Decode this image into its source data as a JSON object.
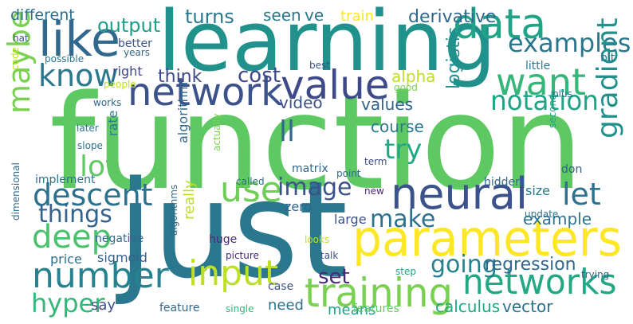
{
  "words": [
    {
      "text": "function",
      "color": "#5ec962"
    },
    {
      "text": "just",
      "color": "#2a788e"
    },
    {
      "text": "learning",
      "color": "#21918c"
    },
    {
      "text": "parameters",
      "color": "#fde725"
    },
    {
      "text": "neural",
      "color": "#3b528b"
    },
    {
      "text": "like",
      "color": "#31688e"
    },
    {
      "text": "network",
      "color": "#3b528b"
    },
    {
      "text": "value",
      "color": "#3e4989"
    },
    {
      "text": "data",
      "color": "#20a386"
    },
    {
      "text": "want",
      "color": "#35b779"
    },
    {
      "text": "training",
      "color": "#7ad151"
    },
    {
      "text": "number",
      "color": "#26828e"
    },
    {
      "text": "networks",
      "color": "#22a884"
    },
    {
      "text": "use",
      "color": "#6ece58"
    },
    {
      "text": "descent",
      "color": "#2c728e"
    },
    {
      "text": "deep",
      "color": "#4ac16d"
    },
    {
      "text": "input",
      "color": "#bddf26"
    },
    {
      "text": "know",
      "color": "#2a788e"
    },
    {
      "text": "maybe",
      "color": "#7ad151"
    },
    {
      "text": "examples",
      "color": "#2a788e"
    },
    {
      "text": "notation",
      "color": "#20a386"
    },
    {
      "text": "gradient",
      "color": "#21918c"
    },
    {
      "text": "let",
      "color": "#2c728e"
    },
    {
      "text": "lot",
      "color": "#5ec962"
    },
    {
      "text": "ll",
      "color": "#31688e"
    },
    {
      "text": "try",
      "color": "#22a884"
    },
    {
      "text": "things",
      "color": "#33638d"
    },
    {
      "text": "hyper",
      "color": "#35b779"
    },
    {
      "text": "going",
      "color": "#26828e"
    },
    {
      "text": "image",
      "color": "#3b528b"
    },
    {
      "text": "make",
      "color": "#2c728e"
    },
    {
      "text": "cost",
      "color": "#3e4989"
    },
    {
      "text": "output",
      "color": "#1f9e89"
    },
    {
      "text": "turns",
      "color": "#2a788e"
    },
    {
      "text": "derivative",
      "color": "#31688e"
    },
    {
      "text": "seen",
      "color": "#2a788e"
    },
    {
      "text": "ve",
      "color": "#2a788e"
    },
    {
      "text": "different",
      "color": "#2c728e"
    },
    {
      "text": "train",
      "color": "#fde725"
    },
    {
      "text": "think",
      "color": "#3e4989"
    },
    {
      "text": "video",
      "color": "#3b528b"
    },
    {
      "text": "values",
      "color": "#33638d"
    },
    {
      "text": "logistic",
      "color": "#21918c"
    },
    {
      "text": "alpha",
      "color": "#bddf26"
    },
    {
      "text": "course",
      "color": "#2a788e"
    },
    {
      "text": "regression",
      "color": "#31688e"
    },
    {
      "text": "example",
      "color": "#2c728e"
    },
    {
      "text": "set",
      "color": "#482878"
    },
    {
      "text": "calculus",
      "color": "#22a884"
    },
    {
      "text": "vector",
      "color": "#2c728e"
    },
    {
      "text": "say",
      "color": "#3b528b"
    },
    {
      "text": "need",
      "color": "#2c728e"
    },
    {
      "text": "feature",
      "color": "#31688e"
    },
    {
      "text": "means",
      "color": "#20a386"
    },
    {
      "text": "features",
      "color": "#5ec962"
    },
    {
      "text": "single",
      "color": "#35b779"
    },
    {
      "text": "price",
      "color": "#2c728e"
    },
    {
      "text": "sigmoid",
      "color": "#33638d"
    },
    {
      "text": "negative",
      "color": "#31688e"
    },
    {
      "text": "implement",
      "color": "#2c728e"
    },
    {
      "text": "zero",
      "color": "#33638d"
    },
    {
      "text": "really",
      "color": "#bddf26"
    },
    {
      "text": "algorithm",
      "color": "#31688e"
    },
    {
      "text": "large",
      "color": "#3b528b"
    },
    {
      "text": "size",
      "color": "#2a788e"
    },
    {
      "text": "don",
      "color": "#33638d"
    },
    {
      "text": "update",
      "color": "#2c728e"
    },
    {
      "text": "right",
      "color": "#3e4989"
    },
    {
      "text": "rate",
      "color": "#2a788e"
    },
    {
      "text": "matrix",
      "color": "#31688e"
    },
    {
      "text": "called",
      "color": "#2c728e"
    },
    {
      "text": "point",
      "color": "#31688e"
    },
    {
      "text": "term",
      "color": "#3e4989"
    },
    {
      "text": "hidden",
      "color": "#31688e"
    },
    {
      "text": "new",
      "color": "#482878"
    },
    {
      "text": "hat",
      "color": "#3b528b"
    },
    {
      "text": "better",
      "color": "#3b528b"
    },
    {
      "text": "years",
      "color": "#31688e"
    },
    {
      "text": "possible",
      "color": "#2c728e"
    },
    {
      "text": "best",
      "color": "#3b528b"
    },
    {
      "text": "little",
      "color": "#2a788e"
    },
    {
      "text": "bit",
      "color": "#2c728e"
    },
    {
      "text": "people",
      "color": "#bddf26"
    },
    {
      "text": "good",
      "color": "#7ad151"
    },
    {
      "text": "plus",
      "color": "#2c728e"
    },
    {
      "text": "works",
      "color": "#31688e"
    },
    {
      "text": "later",
      "color": "#2c728e"
    },
    {
      "text": "slope",
      "color": "#2c728e"
    },
    {
      "text": "second",
      "color": "#20a386"
    },
    {
      "text": "actually",
      "color": "#7ad151"
    },
    {
      "text": "code",
      "color": "#bddf26"
    },
    {
      "text": "dimensional",
      "color": "#31688e"
    },
    {
      "text": "algorithms",
      "color": "#31688e"
    },
    {
      "text": "huge",
      "color": "#482878"
    },
    {
      "text": "picture",
      "color": "#482878"
    },
    {
      "text": "looks",
      "color": "#bddf26"
    },
    {
      "text": "talk",
      "color": "#3b528b"
    },
    {
      "text": "step",
      "color": "#20a386"
    },
    {
      "text": "case",
      "color": "#3b528b"
    },
    {
      "text": "trying",
      "color": "#33638d"
    }
  ]
}
